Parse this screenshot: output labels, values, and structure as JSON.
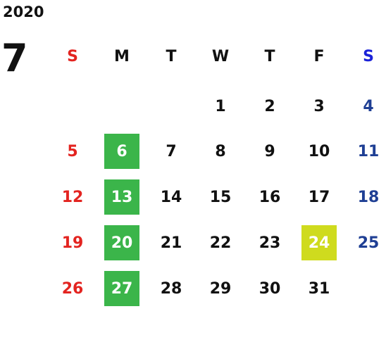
{
  "year": "2020",
  "month": "7",
  "columns": [
    {
      "label": "S",
      "color": "#e32420",
      "day_color": "#e32420"
    },
    {
      "label": "M",
      "color": "#111111",
      "day_color": "#111111"
    },
    {
      "label": "T",
      "color": "#111111",
      "day_color": "#111111"
    },
    {
      "label": "W",
      "color": "#111111",
      "day_color": "#111111"
    },
    {
      "label": "T",
      "color": "#111111",
      "day_color": "#111111"
    },
    {
      "label": "F",
      "color": "#111111",
      "day_color": "#111111"
    },
    {
      "label": "S",
      "color": "#1b22d8",
      "day_color": "#1f3f94"
    }
  ],
  "weeks": [
    [
      null,
      null,
      null,
      1,
      2,
      3,
      4
    ],
    [
      5,
      {
        "day": 6,
        "fill": "#3bb54a"
      },
      7,
      8,
      9,
      10,
      11
    ],
    [
      12,
      {
        "day": 13,
        "fill": "#3bb54a"
      },
      14,
      15,
      16,
      17,
      18
    ],
    [
      19,
      {
        "day": 20,
        "fill": "#3bb54a"
      },
      21,
      22,
      23,
      {
        "day": 24,
        "fill": "#cfdb1e"
      },
      25
    ],
    [
      26,
      {
        "day": 27,
        "fill": "#3bb54a"
      },
      28,
      29,
      30,
      31,
      null
    ]
  ]
}
